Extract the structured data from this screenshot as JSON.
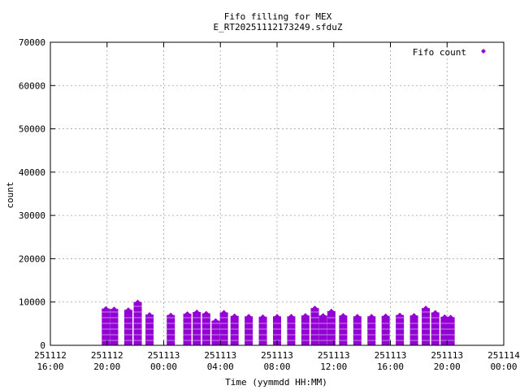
{
  "chart_data": {
    "type": "scatter",
    "title": "Fifo filling for MEX",
    "subtitle": "E_RT20251112173249.sfduZ",
    "xlabel": "Time (yymmdd HH:MM)",
    "ylabel": "count",
    "ylim": [
      0,
      70000
    ],
    "xlim": [
      "2025-11-12 16:00",
      "2025-11-14 00:00"
    ],
    "grid": true,
    "legend_position": "top-right",
    "series_color": "#9400d3",
    "y_ticks": [
      "0",
      "10000",
      "20000",
      "30000",
      "40000",
      "50000",
      "60000",
      "70000"
    ],
    "x_ticks": [
      {
        "value": "2025-11-12 16:00",
        "date": "251112",
        "time": "16:00"
      },
      {
        "value": "2025-11-12 20:00",
        "date": "251112",
        "time": "20:00"
      },
      {
        "value": "2025-11-13 00:00",
        "date": "251113",
        "time": "00:00"
      },
      {
        "value": "2025-11-13 04:00",
        "date": "251113",
        "time": "04:00"
      },
      {
        "value": "2025-11-13 08:00",
        "date": "251113",
        "time": "08:00"
      },
      {
        "value": "2025-11-13 12:00",
        "date": "251113",
        "time": "12:00"
      },
      {
        "value": "2025-11-13 16:00",
        "date": "251113",
        "time": "16:00"
      },
      {
        "value": "2025-11-13 20:00",
        "date": "251113",
        "time": "20:00"
      },
      {
        "value": "2025-11-14 00:00",
        "date": "251114",
        "time": "00:00"
      }
    ],
    "series": [
      {
        "name": "Fifo count",
        "x": [
          "2025-11-12 19:55",
          "2025-11-12 20:30",
          "2025-11-12 21:30",
          "2025-11-12 22:10",
          "2025-11-12 23:00",
          "2025-11-13 00:30",
          "2025-11-13 01:40",
          "2025-11-13 02:20",
          "2025-11-13 03:00",
          "2025-11-13 03:40",
          "2025-11-13 04:15",
          "2025-11-13 05:00",
          "2025-11-13 06:00",
          "2025-11-13 07:00",
          "2025-11-13 08:00",
          "2025-11-13 09:00",
          "2025-11-13 10:00",
          "2025-11-13 10:40",
          "2025-11-13 11:15",
          "2025-11-13 11:50",
          "2025-11-13 12:40",
          "2025-11-13 13:40",
          "2025-11-13 14:40",
          "2025-11-13 15:40",
          "2025-11-13 16:40",
          "2025-11-13 17:40",
          "2025-11-13 18:30",
          "2025-11-13 19:10",
          "2025-11-13 19:50",
          "2025-11-13 20:15"
        ],
        "y_max": [
          8500,
          8400,
          8200,
          10000,
          7100,
          7000,
          7300,
          7700,
          7400,
          5700,
          7600,
          6800,
          6700,
          6600,
          6700,
          6700,
          6900,
          8600,
          6900,
          7900,
          6900,
          6700,
          6700,
          6800,
          7000,
          6900,
          8600,
          7600,
          6600,
          6500
        ],
        "y_min": [
          0,
          0,
          0,
          0,
          0,
          0,
          0,
          0,
          0,
          0,
          0,
          0,
          0,
          0,
          0,
          0,
          0,
          0,
          0,
          0,
          0,
          0,
          0,
          0,
          0,
          0,
          0,
          0,
          0,
          0
        ]
      }
    ]
  }
}
